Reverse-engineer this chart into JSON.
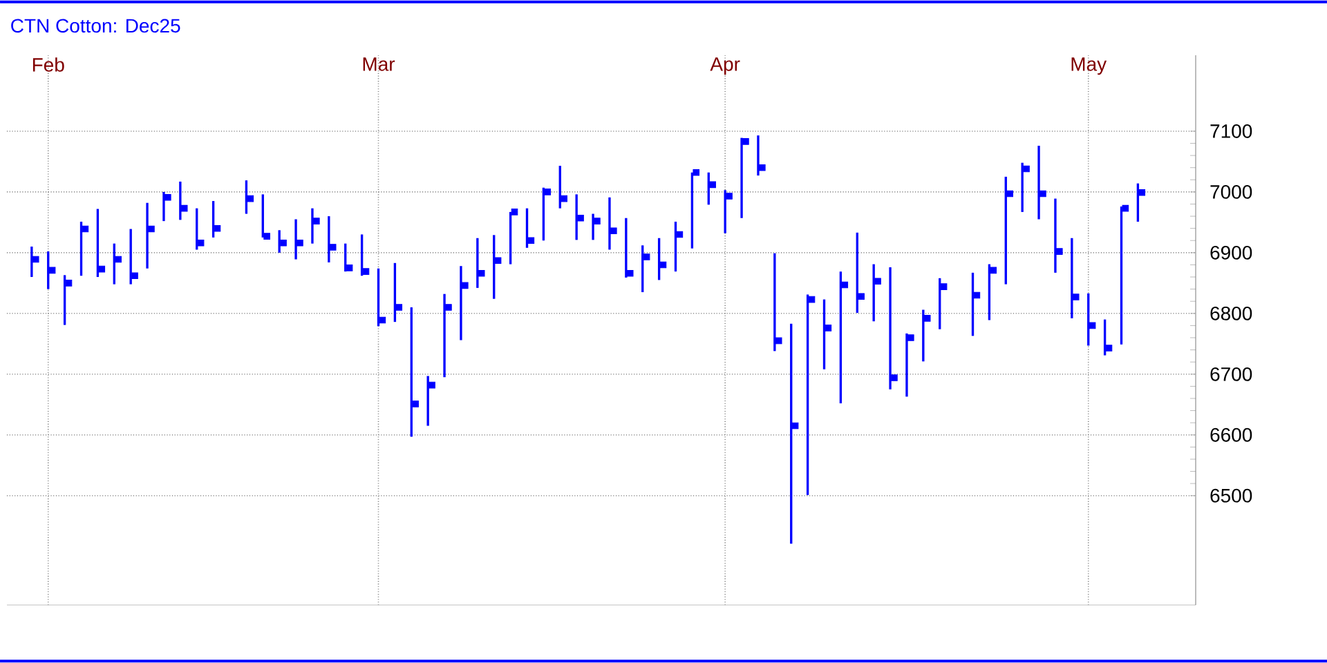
{
  "chart_data": {
    "type": "bar",
    "title": "CTN Cotton: Dec25",
    "categories": [
      null,
      null,
      "Feb",
      null,
      null,
      null,
      null,
      null,
      null,
      null,
      null,
      null,
      null,
      null,
      null,
      null,
      null,
      null,
      null,
      null,
      null,
      null,
      "Mar",
      null,
      null,
      null,
      null,
      null,
      null,
      null,
      null,
      null,
      null,
      null,
      null,
      null,
      null,
      null,
      null,
      null,
      null,
      null,
      null,
      "Apr",
      null,
      null,
      null,
      null,
      null,
      null,
      null,
      null,
      null,
      null,
      null,
      null,
      null,
      null,
      null,
      null,
      null,
      null,
      null,
      null,
      null,
      "May",
      null,
      null,
      null,
      null,
      null,
      null
    ],
    "series": [
      {
        "color": "#0000ff",
        "base": [
          null,
          6860,
          6840,
          6781,
          6862,
          6860,
          6848,
          6848,
          6874,
          6952,
          6954,
          6905,
          6925,
          null,
          6964,
          6925,
          6900,
          6889,
          6915,
          6884,
          6869,
          6862,
          6779,
          6786,
          6597,
          6615,
          6695,
          6756,
          6842,
          6824,
          6881,
          6908,
          6920,
          6973,
          6921,
          6921,
          6905,
          6859,
          6835,
          6855,
          6869,
          6907,
          6979,
          6932,
          6957,
          7027,
          6738,
          6421,
          6501,
          6708,
          6652,
          6801,
          6787,
          6675,
          6663,
          6721,
          6774,
          null,
          6763,
          6789,
          6848,
          6967,
          6955,
          6867,
          6792,
          6747,
          6731,
          6749,
          6951,
          null,
          null,
          null
        ],
        "values": [
          null,
          50,
          62,
          82,
          89,
          112,
          67,
          91,
          108,
          48,
          63,
          68,
          60,
          null,
          55,
          71,
          37,
          66,
          58,
          76,
          46,
          68,
          95,
          97,
          213,
          82,
          137,
          122,
          82,
          105,
          86,
          65,
          87,
          70,
          75,
          43,
          86,
          98,
          77,
          69,
          82,
          125,
          53,
          71,
          132,
          66,
          161,
          362,
          330,
          115,
          217,
          132,
          94,
          201,
          104,
          85,
          84,
          null,
          104,
          92,
          177,
          81,
          121,
          122,
          132,
          86,
          59,
          227,
          63,
          null,
          null,
          null
        ]
      },
      {
        "type": "scatter",
        "color": "#0000ff",
        "marker": "square",
        "values": [
          null,
          6889,
          6871,
          6850,
          6939,
          6873,
          6889,
          6862,
          6939,
          6991,
          6973,
          6916,
          6940,
          null,
          6989,
          6927,
          6916,
          6916,
          6952,
          6909,
          6875,
          6869,
          6789,
          6810,
          6651,
          6682,
          6810,
          6846,
          6866,
          6887,
          6967,
          6920,
          7000,
          6989,
          6957,
          6952,
          6936,
          6866,
          6893,
          6880,
          6930,
          7032,
          7012,
          6993,
          7083,
          7040,
          6755,
          6615,
          6823,
          6776,
          6847,
          6828,
          6853,
          6694,
          6760,
          6792,
          6844,
          null,
          6830,
          6871,
          6997,
          7038,
          6997,
          6902,
          6827,
          6780,
          6743,
          6973,
          6999,
          null,
          null,
          null
        ]
      }
    ],
    "ylim": [
      6320,
      7225
    ],
    "yticks": [
      6500,
      6600,
      6700,
      6800,
      6900,
      7000,
      7100
    ],
    "grid": true
  }
}
